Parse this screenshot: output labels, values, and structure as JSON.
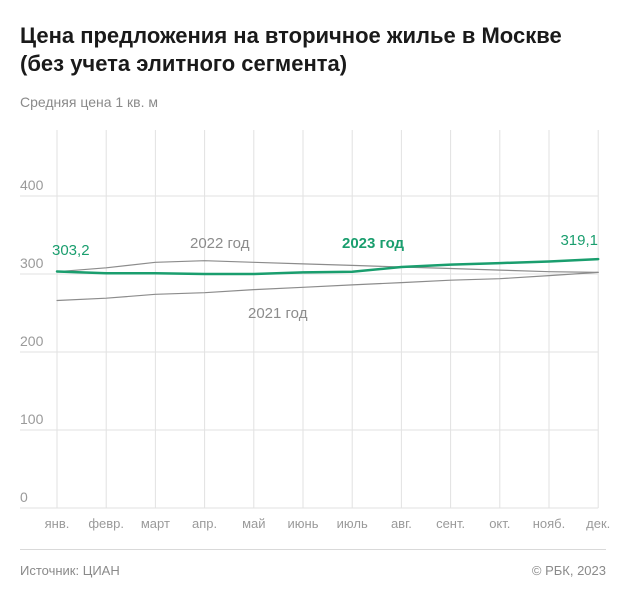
{
  "header": {
    "title": "Цена предложения на вторичное жилье в Москве (без учета элитного сегмента)",
    "subtitle": "Средняя цена 1 кв. м"
  },
  "footer": {
    "source": "Источник: ЦИАН",
    "copyright": "© РБК, 2023"
  },
  "colors": {
    "series_2023": "#1a9e6e",
    "series_other": "#8c8c8c",
    "grid": "#e2e2e2",
    "axis_text": "#9a9a9a"
  },
  "chart_data": {
    "type": "line",
    "categories": [
      "янв.",
      "февр.",
      "март",
      "апр.",
      "май",
      "июнь",
      "июль",
      "авг.",
      "сент.",
      "окт.",
      "нояб.",
      "дек."
    ],
    "ylim": [
      0,
      500
    ],
    "yticks": [
      0,
      100,
      200,
      300,
      400
    ],
    "grid": true,
    "series": [
      {
        "name": "2021 год",
        "values": [
          266,
          269,
          274,
          276,
          280,
          283,
          286,
          289,
          292,
          294,
          298,
          302
        ]
      },
      {
        "name": "2022 год",
        "values": [
          303,
          308,
          315,
          317,
          315,
          313,
          311,
          309,
          307,
          305,
          303,
          302
        ]
      },
      {
        "name": "2023 год",
        "values": [
          303.2,
          301,
          301,
          300,
          300,
          302,
          303,
          309,
          312,
          314,
          316,
          319.1
        ]
      }
    ],
    "annotations": {
      "first_value": "303,2",
      "last_value": "319,1"
    }
  }
}
